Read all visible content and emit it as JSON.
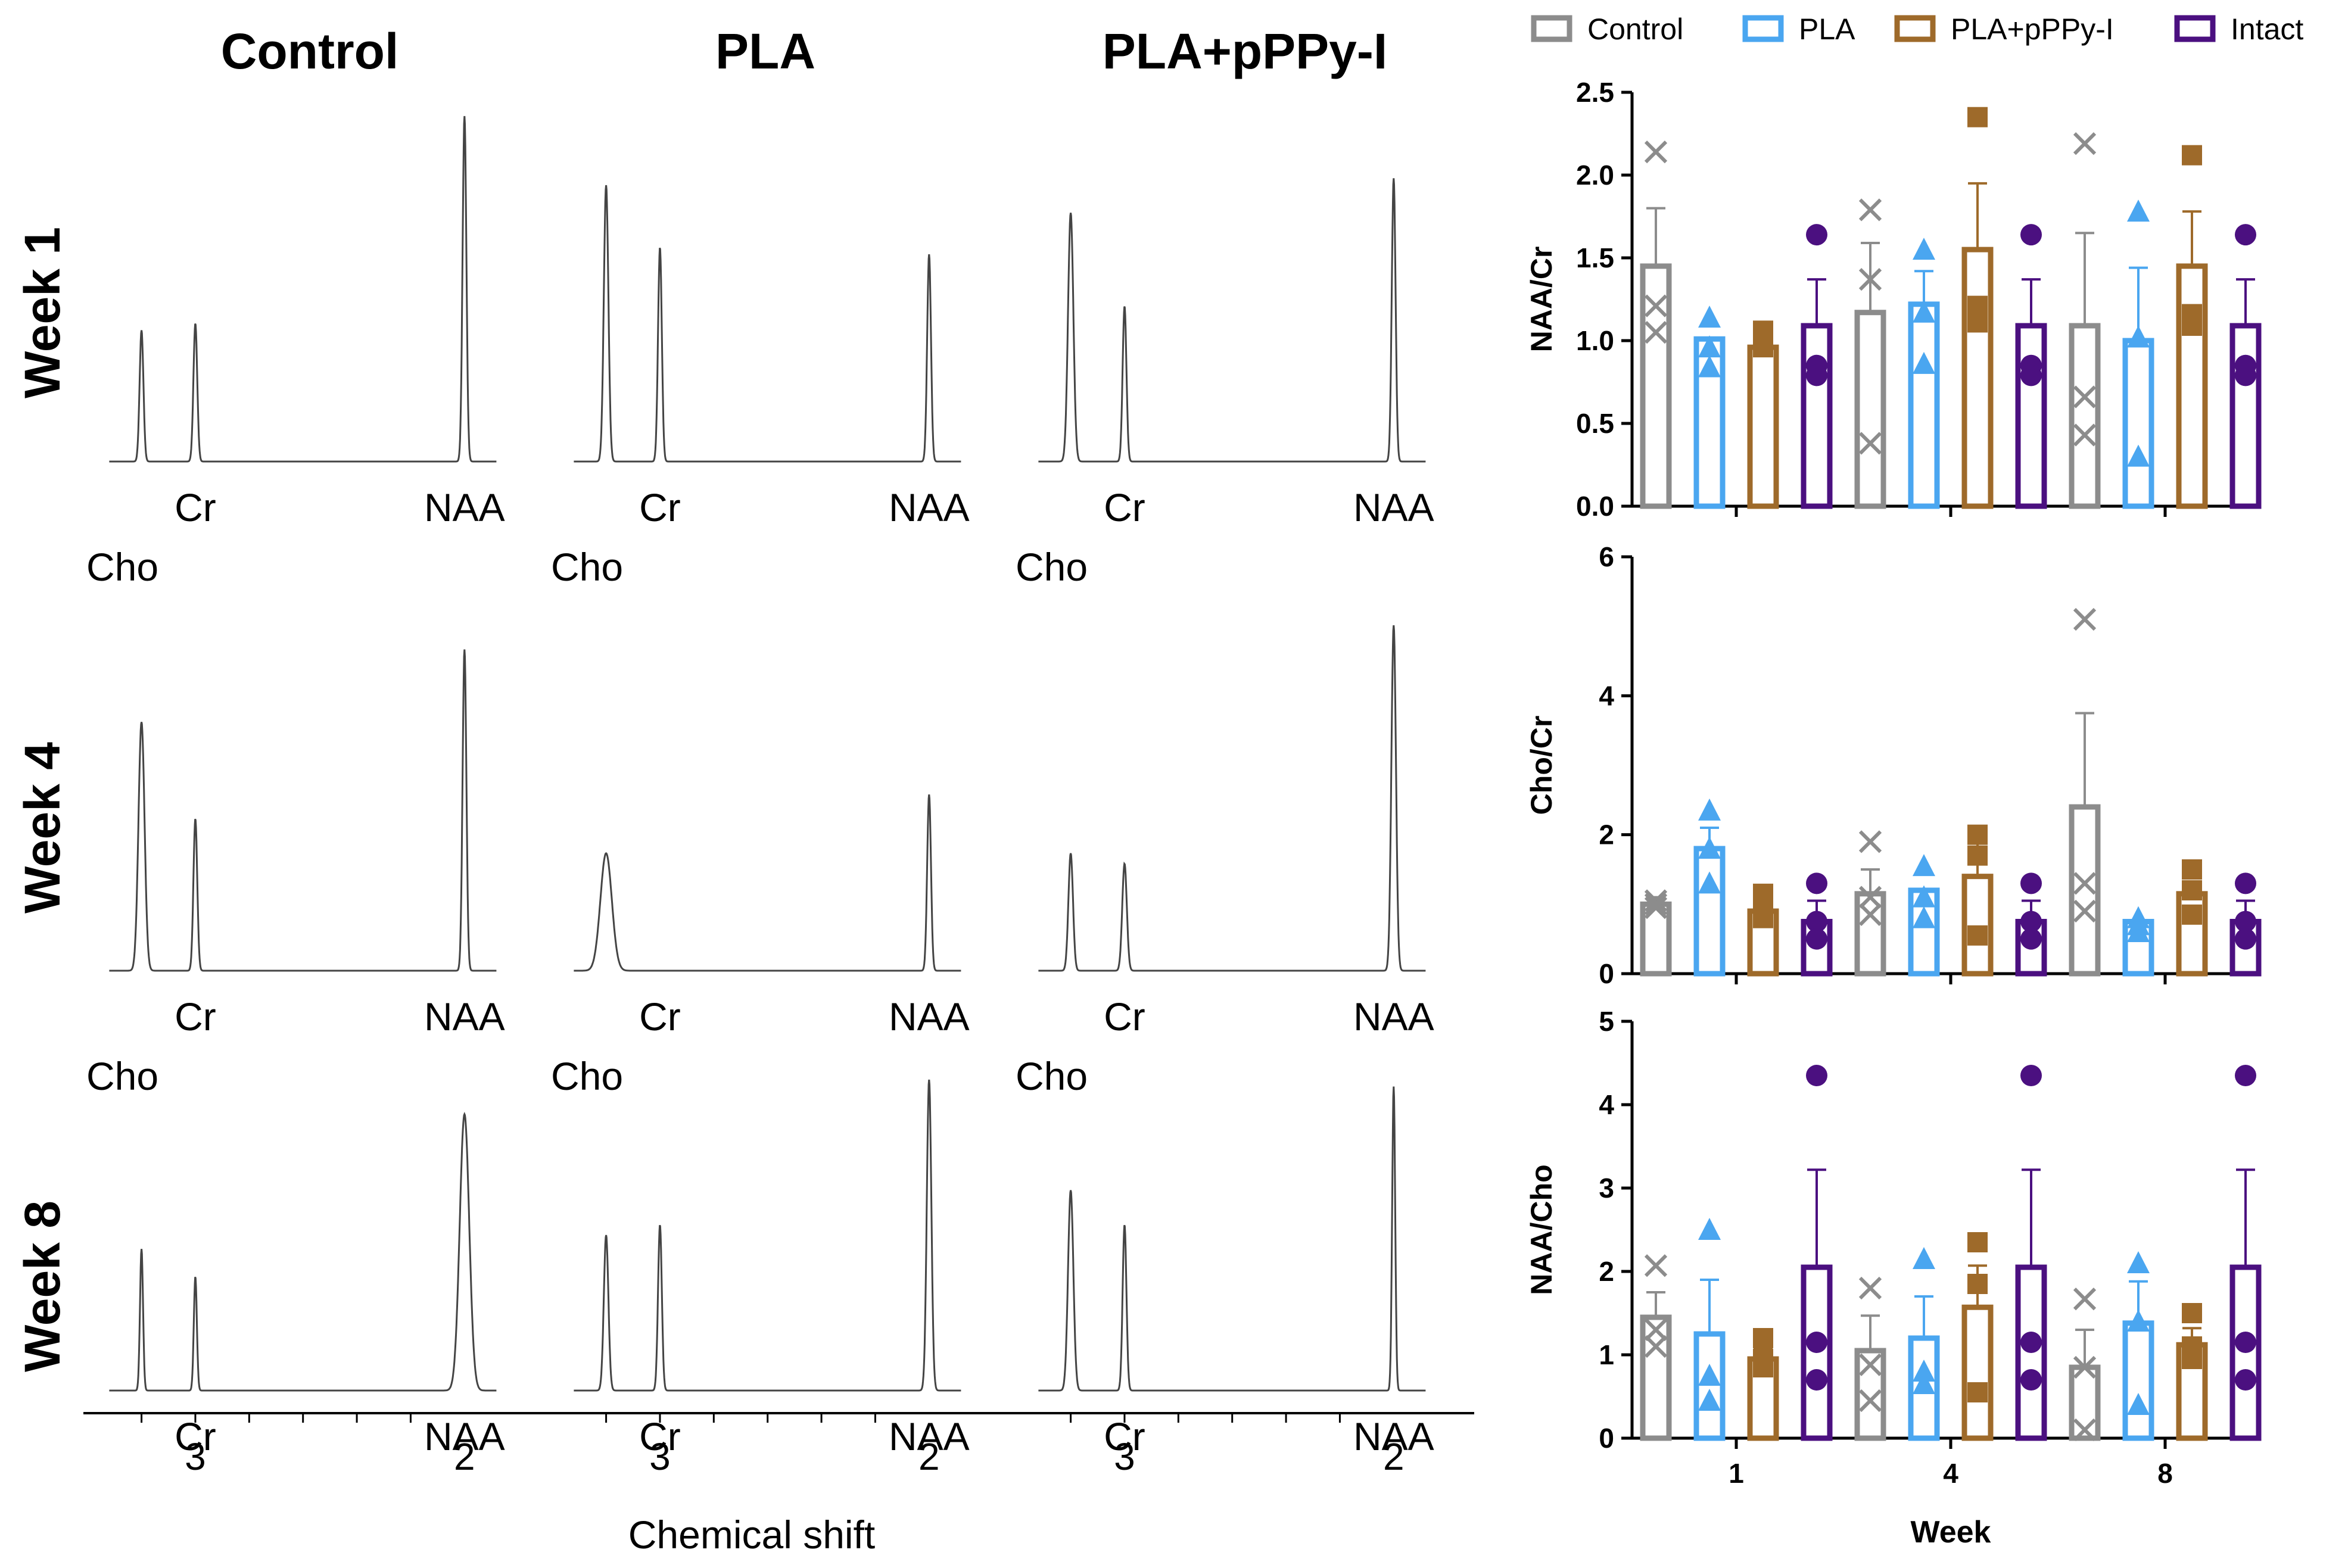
{
  "chart_data": [
    {
      "type": "line",
      "description": "MR spectra grid",
      "columns": [
        "Control",
        "PLA",
        "PLA+pPPy-I"
      ],
      "rows": [
        "Week 1",
        "Week 4",
        "Week 8"
      ],
      "peak_labels": {
        "cho": "Cho",
        "cr": "Cr",
        "naa": "NAA"
      },
      "x_ticks": [
        "3",
        "2"
      ],
      "xlabel": "Chemical shift",
      "peak_positions_ppm": {
        "Cho": 3.2,
        "Cr": 3.0,
        "NAA": 2.0
      },
      "spectra": [
        [
          {
            "cho": 0.38,
            "cr": 0.4,
            "naa": 1.0,
            "cho_w": 0.01,
            "cr_w": 0.01,
            "naa_w": 0.01
          },
          {
            "cho": 0.8,
            "cr": 0.62,
            "naa": 0.6,
            "cho_w": 0.012,
            "cr_w": 0.01,
            "naa_w": 0.01
          },
          {
            "cho": 0.72,
            "cr": 0.45,
            "naa": 0.82,
            "cho_w": 0.014,
            "cr_w": 0.01,
            "naa_w": 0.01
          }
        ],
        [
          {
            "cho": 0.72,
            "cr": 0.44,
            "naa": 0.93,
            "cho_w": 0.016,
            "cr_w": 0.01,
            "naa_w": 0.01
          },
          {
            "cho": 0.34,
            "cr": 0.0,
            "naa": 0.51,
            "cho_w": 0.03,
            "cr_w": 0.01,
            "naa_w": 0.01
          },
          {
            "cho": 0.34,
            "cr": 0.31,
            "naa": 1.0,
            "cho_w": 0.012,
            "cr_w": 0.012,
            "naa_w": 0.012
          }
        ],
        [
          {
            "cho": 0.41,
            "cr": 0.33,
            "naa": 0.8,
            "cho_w": 0.008,
            "cr_w": 0.008,
            "naa_w": 0.025
          },
          {
            "cho": 0.45,
            "cr": 0.48,
            "naa": 0.9,
            "cho_w": 0.012,
            "cr_w": 0.01,
            "naa_w": 0.012
          },
          {
            "cho": 0.58,
            "cr": 0.48,
            "naa": 0.88,
            "cho_w": 0.014,
            "cr_w": 0.01,
            "naa_w": 0.008
          }
        ]
      ]
    },
    {
      "type": "bar",
      "legend": [
        "Control",
        "PLA",
        "PLA+pPPy-I",
        "Intact"
      ],
      "legend_position": "top",
      "colors": [
        "#8c8c8c",
        "#4aa6f0",
        "#9e6a2a",
        "#4b1080"
      ],
      "markers": [
        "x",
        "triangle",
        "square",
        "circle"
      ],
      "categories": [
        "1",
        "4",
        "8"
      ],
      "xlabel": "Week",
      "panels": [
        {
          "ylabel": "NAA/Cr",
          "ylim": [
            0,
            2.5
          ],
          "yticks": [
            "0.0",
            "0.5",
            "1.0",
            "1.5",
            "2.0",
            "2.5"
          ],
          "series": [
            {
              "name": "Control",
              "values": [
                1.45,
                1.17,
                1.09
              ],
              "errors": [
                0.35,
                0.42,
                0.56
              ],
              "points": [
                [
                  2.14,
                  1.21,
                  1.05
                ],
                [
                  1.79,
                  1.37,
                  0.38
                ],
                [
                  2.19,
                  0.66,
                  0.43
                ]
              ]
            },
            {
              "name": "PLA",
              "values": [
                1.01,
                1.22,
                1.0
              ],
              "errors": [
                0.0,
                0.2,
                0.44
              ],
              "points": [
                [
                  1.14,
                  0.96,
                  0.84
                ],
                [
                  1.55,
                  1.17,
                  0.86
                ],
                [
                  1.78,
                  1.02,
                  0.3
                ]
              ]
            },
            {
              "name": "PLA+pPPy-I",
              "values": [
                0.96,
                1.55,
                1.45
              ],
              "errors": [
                0.06,
                0.4,
                0.33
              ],
              "points": [
                [
                  1.06,
                  0.96,
                  1.04
                ],
                [
                  2.35,
                  1.21,
                  1.11
                ],
                [
                  2.12,
                  1.16,
                  1.09
                ]
              ]
            },
            {
              "name": "Intact",
              "values": [
                1.09,
                1.09,
                1.09
              ],
              "errors": [
                0.28,
                0.28,
                0.28
              ],
              "points": [
                [
                  1.64,
                  0.85,
                  0.79
                ],
                [
                  1.64,
                  0.85,
                  0.79
                ],
                [
                  1.64,
                  0.85,
                  0.79
                ]
              ]
            }
          ]
        },
        {
          "ylabel": "Cho/Cr",
          "ylim": [
            0,
            6
          ],
          "yticks": [
            "0",
            "2",
            "4",
            "6"
          ],
          "series": [
            {
              "name": "Control",
              "values": [
                1.0,
                1.15,
                2.4
              ],
              "errors": [
                0.1,
                0.35,
                1.35
              ],
              "points": [
                [
                  1.05,
                  1.0,
                  0.95
                ],
                [
                  1.9,
                  0.85,
                  1.1
                ],
                [
                  5.1,
                  1.3,
                  0.9
                ]
              ]
            },
            {
              "name": "PLA",
              "values": [
                1.8,
                1.2,
                0.75
              ],
              "errors": [
                0.3,
                0.0,
                0.0
              ],
              "points": [
                [
                  2.35,
                  1.8,
                  1.3
                ],
                [
                  1.55,
                  1.1,
                  0.8
                ],
                [
                  0.8,
                  0.7,
                  0.6
                ]
              ]
            },
            {
              "name": "PLA+pPPy-I",
              "values": [
                0.9,
                1.4,
                1.15
              ],
              "errors": [
                0.15,
                0.55,
                0.0
              ],
              "points": [
                [
                  1.15,
                  0.9,
                  0.8
                ],
                [
                  2.0,
                  1.7,
                  0.55
                ],
                [
                  1.5,
                  1.2,
                  0.85
                ]
              ]
            },
            {
              "name": "Intact",
              "values": [
                0.75,
                0.75,
                0.75
              ],
              "errors": [
                0.3,
                0.3,
                0.3
              ],
              "points": [
                [
                  1.3,
                  0.75,
                  0.5
                ],
                [
                  1.3,
                  0.75,
                  0.5
                ],
                [
                  1.3,
                  0.75,
                  0.5
                ]
              ]
            }
          ]
        },
        {
          "ylabel": "NAA/Cho",
          "ylim": [
            0,
            5
          ],
          "yticks": [
            "0",
            "1",
            "2",
            "3",
            "4",
            "5"
          ],
          "series": [
            {
              "name": "Control",
              "values": [
                1.45,
                1.05,
                0.85
              ],
              "errors": [
                0.3,
                0.42,
                0.45
              ],
              "points": [
                [
                  2.07,
                  1.3,
                  1.1
                ],
                [
                  1.8,
                  0.88,
                  0.45
                ],
                [
                  1.67,
                  0.85,
                  0.1
                ]
              ]
            },
            {
              "name": "PLA",
              "values": [
                1.25,
                1.2,
                1.38
              ],
              "errors": [
                0.65,
                0.5,
                0.5
              ],
              "points": [
                [
                  2.5,
                  0.75,
                  0.45
                ],
                [
                  2.15,
                  0.8,
                  0.65
                ],
                [
                  2.1,
                  1.4,
                  0.4
                ]
              ]
            },
            {
              "name": "PLA+pPPy-I",
              "values": [
                0.95,
                1.57,
                1.12
              ],
              "errors": [
                0.12,
                0.5,
                0.2
              ],
              "points": [
                [
                  1.2,
                  0.95,
                  0.85
                ],
                [
                  2.35,
                  1.85,
                  0.55
                ],
                [
                  1.5,
                  1.1,
                  0.95
                ]
              ]
            },
            {
              "name": "Intact",
              "values": [
                2.05,
                2.05,
                2.05
              ],
              "errors": [
                1.17,
                1.17,
                1.17
              ],
              "points": [
                [
                  4.35,
                  1.15,
                  0.7
                ],
                [
                  4.35,
                  1.15,
                  0.7
                ],
                [
                  4.35,
                  1.15,
                  0.7
                ]
              ]
            }
          ]
        }
      ]
    }
  ]
}
